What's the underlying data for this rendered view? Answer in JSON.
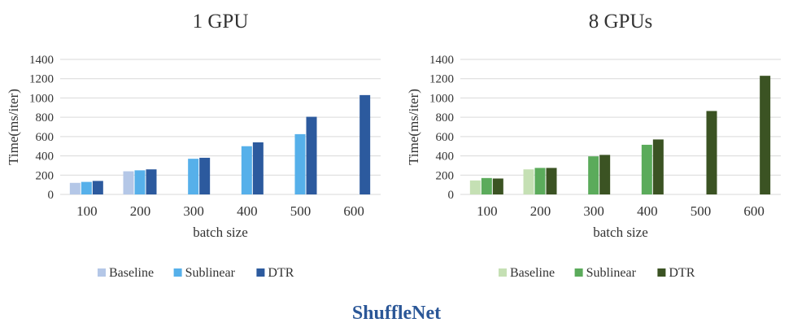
{
  "figure_title": "ShuffleNet",
  "chart_data": [
    {
      "type": "bar",
      "title": "1 GPU",
      "xlabel": "batch size",
      "ylabel": "Time(ms/iter)",
      "categories": [
        "100",
        "200",
        "300",
        "400",
        "500",
        "600"
      ],
      "ylim": [
        0,
        1400
      ],
      "yticks": [
        0,
        200,
        400,
        600,
        800,
        1000,
        1200,
        1400
      ],
      "grid": true,
      "legend_position": "bottom",
      "series": [
        {
          "name": "Baseline",
          "color": "#B4C7E7",
          "values": [
            120,
            240,
            null,
            null,
            null,
            null
          ]
        },
        {
          "name": "Sublinear",
          "color": "#56B0EA",
          "values": [
            130,
            250,
            370,
            500,
            625,
            null
          ]
        },
        {
          "name": "DTR",
          "color": "#2C5A9E",
          "values": [
            140,
            260,
            380,
            540,
            805,
            1030
          ]
        }
      ]
    },
    {
      "type": "bar",
      "title": "8 GPUs",
      "xlabel": "batch size",
      "ylabel": "Time(ms/iter)",
      "categories": [
        "100",
        "200",
        "300",
        "400",
        "500",
        "600"
      ],
      "ylim": [
        0,
        1400
      ],
      "yticks": [
        0,
        200,
        400,
        600,
        800,
        1000,
        1200,
        1400
      ],
      "grid": true,
      "legend_position": "bottom",
      "series": [
        {
          "name": "Baseline",
          "color": "#C5E0B4",
          "values": [
            145,
            260,
            null,
            null,
            null,
            null
          ]
        },
        {
          "name": "Sublinear",
          "color": "#5BAB5B",
          "values": [
            170,
            275,
            395,
            515,
            null,
            null
          ]
        },
        {
          "name": "DTR",
          "color": "#3B5323",
          "values": [
            165,
            275,
            410,
            570,
            865,
            1230
          ]
        }
      ]
    }
  ]
}
